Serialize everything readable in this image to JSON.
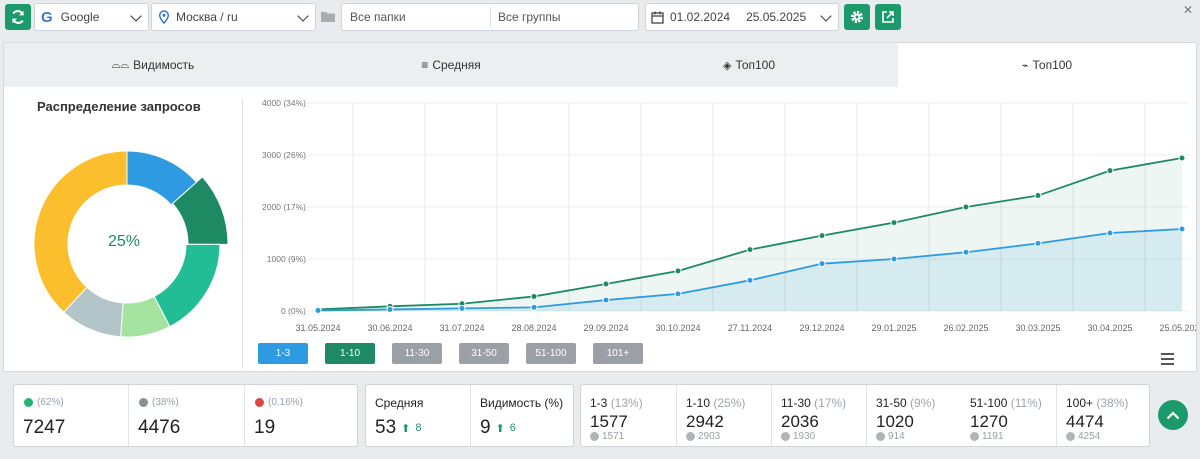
{
  "toolbar": {
    "engine": "Google",
    "region": "Москва / ru",
    "folders_placeholder": "Все папки",
    "groups_placeholder": "Все группы",
    "date_from": "01.02.2024",
    "date_to": "25.05.2025",
    "colors": {
      "accent": "#1c9a6c"
    }
  },
  "tabs": [
    {
      "label": "Видимость",
      "icon": "glasses-icon"
    },
    {
      "label": "Средняя",
      "icon": "average-icon"
    },
    {
      "label": "Топ100",
      "icon": "layers-icon"
    },
    {
      "label": "Топ100",
      "icon": "trend-icon",
      "active": true
    }
  ],
  "donut": {
    "title": "Распределение запросов",
    "center_label": "25%",
    "highlight": "1-10",
    "slices": [
      {
        "name": "1-3",
        "value": 1577,
        "color": "#2e9ae2"
      },
      {
        "name": "1-10",
        "value": 1365,
        "color": "#1e8a64"
      },
      {
        "name": "11-30",
        "value": 2036,
        "color": "#22bd95"
      },
      {
        "name": "31-50",
        "value": 1020,
        "color": "#a5e3a0"
      },
      {
        "name": "51-100",
        "value": 1270,
        "color": "#b3c5c8"
      },
      {
        "name": "100+",
        "value": 4474,
        "color": "#fbbf2e"
      }
    ]
  },
  "chart_data": {
    "type": "area",
    "x": [
      "31.05.2024",
      "30.06.2024",
      "31.07.2024",
      "28.08.2024",
      "29.09.2024",
      "30.10.2024",
      "27.11.2024",
      "29.12.2024",
      "29.01.2025",
      "26.02.2025",
      "30.03.2025",
      "30.04.2025",
      "25.05.2025"
    ],
    "y_ticks": [
      "0 (0%)",
      "1000 (9%)",
      "2000 (17%)",
      "3000 (26%)",
      "4000 (34%)"
    ],
    "ylim": [
      0,
      4000
    ],
    "grid": true,
    "series": [
      {
        "name": "1-10",
        "color": "#1e8a64",
        "values": [
          30,
          90,
          140,
          280,
          520,
          770,
          1180,
          1450,
          1700,
          2000,
          2220,
          2700,
          2942
        ]
      },
      {
        "name": "1-3",
        "color": "#2e9ae2",
        "values": [
          10,
          30,
          50,
          70,
          210,
          330,
          590,
          910,
          1000,
          1130,
          1300,
          1500,
          1577
        ]
      }
    ]
  },
  "filters": [
    {
      "label": "1-3",
      "color": "#2e9ae2"
    },
    {
      "label": "1-10",
      "color": "#1e8a64"
    },
    {
      "label": "11-30",
      "color": "#9aa0a5"
    },
    {
      "label": "31-50",
      "color": "#9aa0a5"
    },
    {
      "label": "51-100",
      "color": "#9aa0a5"
    },
    {
      "label": "101+",
      "color": "#9aa0a5"
    }
  ],
  "summary": {
    "up": {
      "pct": "(62%)",
      "value": "7247"
    },
    "same": {
      "pct": "(38%)",
      "value": "4476"
    },
    "down": {
      "pct": "(0.16%)",
      "value": "19"
    }
  },
  "metrics": {
    "avg": {
      "label": "Средняя",
      "value": "53",
      "delta": "8"
    },
    "visibility": {
      "label": "Видимость (%)",
      "value": "9",
      "delta": "6"
    }
  },
  "ranges": [
    {
      "label": "1-3",
      "pct": "(13%)",
      "value": "1577",
      "prev": "1571"
    },
    {
      "label": "1-10",
      "pct": "(25%)",
      "value": "2942",
      "prev": "2903"
    },
    {
      "label": "11-30",
      "pct": "(17%)",
      "value": "2036",
      "prev": "1930"
    },
    {
      "label": "31-50",
      "pct": "(9%)",
      "value": "1020",
      "prev": "914"
    },
    {
      "label": "51-100",
      "pct": "(11%)",
      "value": "1270",
      "prev": "1191"
    },
    {
      "label": "100+",
      "pct": "(38%)",
      "value": "4474",
      "prev": "4254"
    }
  ]
}
